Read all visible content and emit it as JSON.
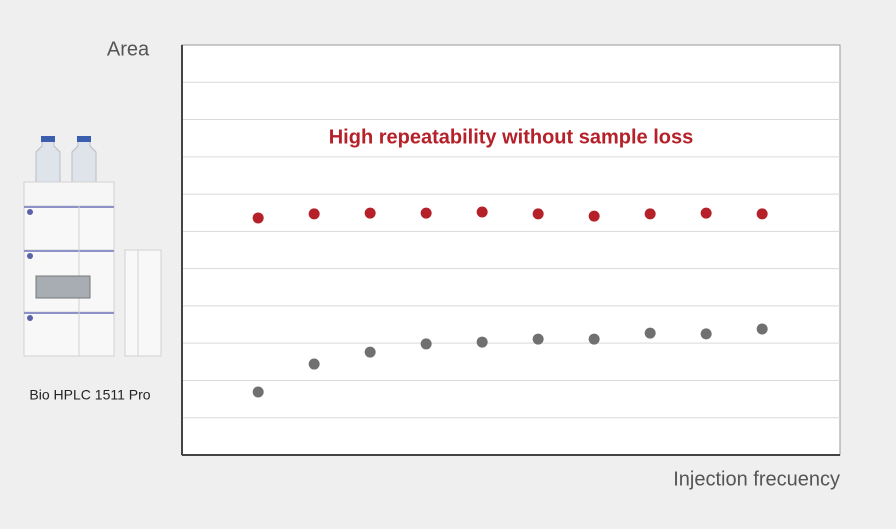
{
  "chart_data": {
    "type": "scatter",
    "xlabel": "Injection frecuency",
    "ylabel": "Area",
    "annotation": "High repeatability without sample loss",
    "annotation_color": "#b52029",
    "x": [
      1,
      2,
      3,
      4,
      5,
      6,
      7,
      8,
      9,
      10
    ],
    "series": [
      {
        "color": "#b52029",
        "values": [
          6.36,
          6.47,
          6.49,
          6.49,
          6.52,
          6.47,
          6.41,
          6.47,
          6.49,
          6.47
        ]
      },
      {
        "color": "#707070",
        "values": [
          1.69,
          2.44,
          2.76,
          2.98,
          3.03,
          3.11,
          3.11,
          3.27,
          3.25,
          3.38
        ]
      }
    ],
    "xlim": [
      -0.36,
      11.39
    ],
    "ylim": [
      0,
      11
    ],
    "yticks": [
      1,
      2,
      3,
      4,
      5,
      6,
      7,
      8,
      9,
      10
    ],
    "grid": true,
    "tick_labels": false
  },
  "instrument": {
    "label": "Bio HPLC 1511 Pro"
  }
}
